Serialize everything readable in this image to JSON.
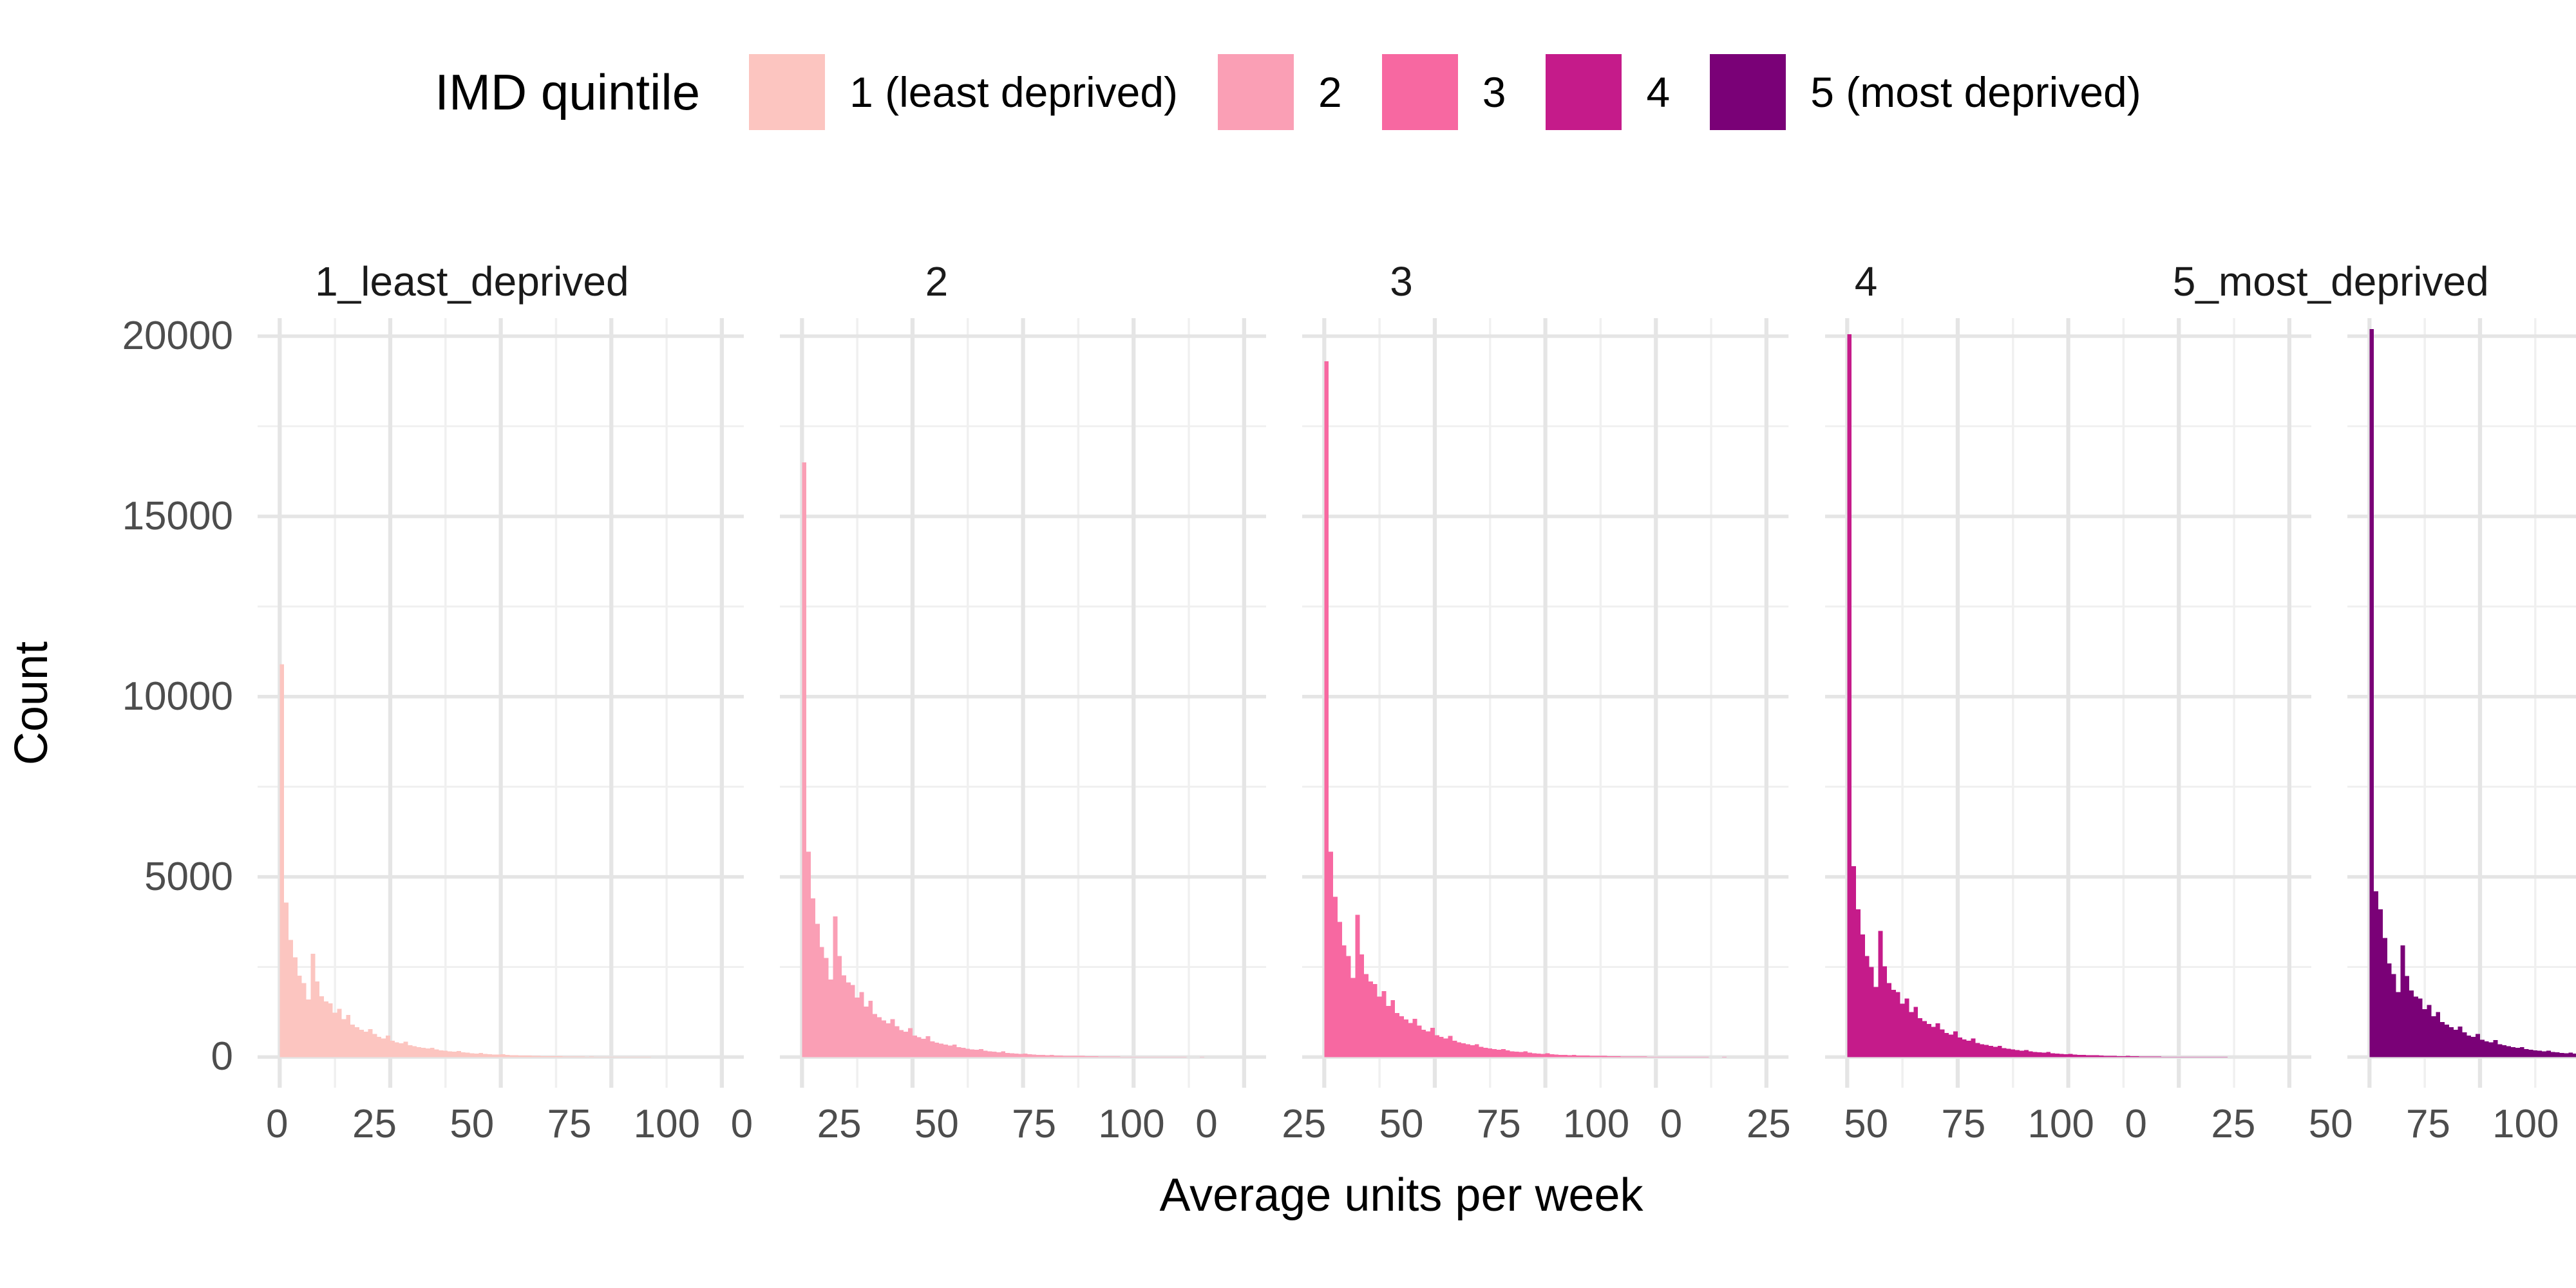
{
  "legend": {
    "title": "IMD quintile",
    "items": [
      {
        "label": "1 (least deprived)",
        "color": "#fcc5c0"
      },
      {
        "label": "2",
        "color": "#fa9fb5"
      },
      {
        "label": "3",
        "color": "#f768a1"
      },
      {
        "label": "4",
        "color": "#c51b8a"
      },
      {
        "label": "5 (most deprived)",
        "color": "#7a0177"
      }
    ]
  },
  "chart_data": {
    "type": "bar",
    "subtype": "faceted-histograms",
    "xlabel": "Average units per week",
    "ylabel": "Count",
    "x_ticks": [
      0,
      25,
      50,
      75,
      100
    ],
    "y_ticks": [
      0,
      5000,
      10000,
      15000,
      20000
    ],
    "x_minor": [
      12.5,
      37.5,
      62.5,
      87.5
    ],
    "y_minor": [
      2500,
      7500,
      12500,
      17500
    ],
    "xlim": [
      -5,
      105
    ],
    "ylim": [
      -850,
      20500
    ],
    "bin_start": 0,
    "bin_width": 1,
    "grid": {
      "major_color": "#e5e5e5",
      "minor_color": "#f0f0f0"
    },
    "tick_label_color": "#4d4d4d",
    "facets": [
      {
        "label": "1_least_deprived",
        "color": "#fcc5c0",
        "counts": [
          10900,
          4290,
          3250,
          2770,
          2260,
          2050,
          1600,
          2870,
          2100,
          1690,
          1540,
          1490,
          1230,
          1340,
          1050,
          1170,
          900,
          830,
          760,
          700,
          780,
          640,
          560,
          520,
          600,
          450,
          410,
          380,
          430,
          330,
          300,
          280,
          260,
          240,
          260,
          210,
          190,
          175,
          160,
          150,
          165,
          135,
          120,
          110,
          100,
          115,
          88,
          80,
          73,
          67,
          75,
          58,
          52,
          48,
          44,
          40,
          45,
          34,
          31,
          28,
          26,
          24,
          22,
          25,
          19,
          17,
          16,
          14,
          13,
          12,
          14,
          10,
          9,
          9,
          8,
          7,
          8,
          6,
          6,
          5,
          5,
          4,
          4,
          5,
          3,
          3,
          3,
          2,
          2,
          2,
          3,
          2,
          1,
          1,
          1,
          2,
          1,
          1,
          0,
          1
        ]
      },
      {
        "label": "2",
        "color": "#fa9fb5",
        "counts": [
          16500,
          5700,
          4400,
          3700,
          3050,
          2750,
          2150,
          3900,
          2800,
          2270,
          2070,
          2000,
          1650,
          1800,
          1400,
          1560,
          1200,
          1110,
          1020,
          940,
          1050,
          860,
          750,
          700,
          800,
          600,
          550,
          510,
          580,
          440,
          400,
          375,
          350,
          320,
          350,
          280,
          255,
          235,
          215,
          200,
          220,
          180,
          160,
          148,
          135,
          155,
          118,
          108,
          98,
          90,
          100,
          78,
          70,
          64,
          59,
          54,
          60,
          46,
          42,
          38,
          35,
          32,
          30,
          33,
          26,
          23,
          21,
          19,
          17,
          16,
          19,
          14,
          12,
          12,
          11,
          9,
          11,
          8,
          8,
          7,
          6,
          5,
          5,
          7,
          4,
          4,
          4,
          3,
          3,
          3,
          4,
          2,
          2,
          2,
          1,
          2,
          1,
          1,
          1,
          1
        ]
      },
      {
        "label": "3",
        "color": "#f768a1",
        "counts": [
          19300,
          5700,
          4450,
          3750,
          3100,
          2800,
          2200,
          3950,
          2850,
          2300,
          2100,
          2030,
          1680,
          1830,
          1420,
          1580,
          1220,
          1130,
          1040,
          950,
          1060,
          870,
          760,
          710,
          810,
          610,
          560,
          520,
          590,
          450,
          410,
          380,
          355,
          325,
          355,
          285,
          260,
          240,
          220,
          205,
          225,
          182,
          163,
          150,
          138,
          158,
          120,
          110,
          100,
          92,
          102,
          80,
          71,
          65,
          60,
          55,
          61,
          47,
          43,
          39,
          36,
          33,
          30,
          34,
          26,
          24,
          22,
          19,
          18,
          16,
          19,
          14,
          13,
          12,
          11,
          10,
          11,
          8,
          8,
          7,
          7,
          6,
          5,
          7,
          5,
          4,
          4,
          3,
          3,
          3,
          4,
          2,
          2,
          2,
          2,
          2,
          1,
          1,
          1,
          1
        ]
      },
      {
        "label": "4",
        "color": "#c51b8a",
        "counts": [
          20050,
          5300,
          4100,
          3400,
          2800,
          2500,
          1950,
          3500,
          2520,
          2050,
          1870,
          1800,
          1480,
          1620,
          1250,
          1390,
          1080,
          1000,
          920,
          840,
          940,
          770,
          670,
          620,
          710,
          540,
          490,
          455,
          520,
          395,
          360,
          335,
          310,
          285,
          310,
          250,
          228,
          210,
          193,
          180,
          198,
          160,
          143,
          132,
          121,
          139,
          106,
          97,
          88,
          81,
          90,
          70,
          62,
          57,
          52,
          48,
          53,
          41,
          38,
          34,
          31,
          29,
          27,
          30,
          23,
          21,
          19,
          17,
          16,
          14,
          17,
          12,
          11,
          11,
          10,
          8,
          10,
          7,
          7,
          6,
          6,
          5,
          5,
          6,
          4,
          4,
          3,
          3,
          3,
          2,
          3,
          2,
          2,
          2,
          1,
          2,
          1,
          1,
          1,
          1
        ]
      },
      {
        "label": "5_most_deprived",
        "color": "#7a0177",
        "counts": [
          20200,
          4600,
          4100,
          3300,
          2600,
          2300,
          1800,
          3100,
          2250,
          1850,
          1680,
          1620,
          1330,
          1450,
          1130,
          1250,
          970,
          900,
          830,
          760,
          850,
          690,
          600,
          560,
          640,
          480,
          440,
          410,
          470,
          355,
          325,
          300,
          280,
          255,
          280,
          225,
          205,
          190,
          174,
          162,
          178,
          144,
          129,
          119,
          109,
          125,
          96,
          87,
          79,
          73,
          81,
          63,
          56,
          51,
          47,
          43,
          48,
          37,
          34,
          31,
          28,
          26,
          24,
          27,
          21,
          19,
          17,
          15,
          14,
          13,
          15,
          11,
          10,
          10,
          9,
          8,
          9,
          7,
          6,
          6,
          5,
          5,
          4,
          6,
          4,
          3,
          3,
          3,
          2,
          2,
          3,
          2,
          2,
          1,
          1,
          2,
          1,
          1,
          1,
          1
        ]
      }
    ]
  }
}
